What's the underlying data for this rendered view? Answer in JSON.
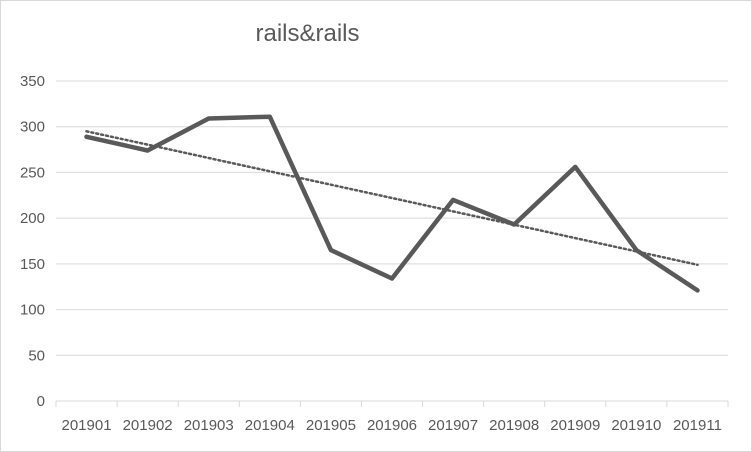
{
  "chart_data": {
    "type": "line",
    "title": "rails&rails",
    "xlabel": "",
    "ylabel": "",
    "categories": [
      "201901",
      "201902",
      "201903",
      "201904",
      "201905",
      "201906",
      "201907",
      "201908",
      "201909",
      "201910",
      "201911"
    ],
    "series": [
      {
        "values": [
          289,
          274,
          309,
          311,
          165,
          134,
          220,
          193,
          256,
          165,
          121
        ],
        "color": "#595959",
        "style": "solid"
      }
    ],
    "trendline": {
      "type": "linear",
      "values": [
        295,
        280.4,
        265.8,
        251.2,
        236.6,
        222,
        207.4,
        192.8,
        178.2,
        163.6,
        149
      ],
      "color": "#595959",
      "style": "dotted"
    },
    "ylim": [
      0,
      350
    ],
    "yticks": [
      0,
      50,
      100,
      150,
      200,
      250,
      300,
      350
    ],
    "grid": true,
    "legend": "none"
  }
}
